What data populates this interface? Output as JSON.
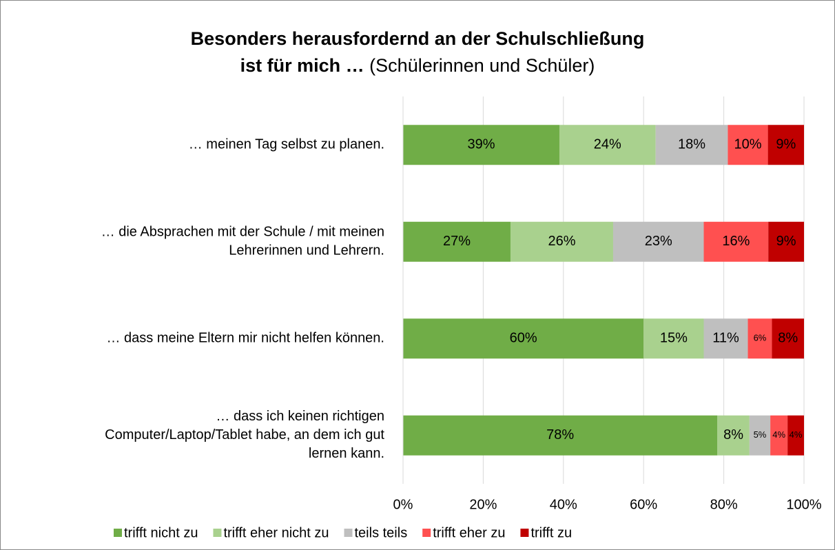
{
  "chart_data": {
    "type": "stacked-barh",
    "title": [
      "Besonders herausfordernd an der Schulschließung",
      "ist für mich …"
    ],
    "subtitle": "(Schülerinnen und Schüler)",
    "categories": [
      [
        "… meinen Tag selbst zu planen."
      ],
      [
        "… die Absprachen mit der Schule / mit meinen",
        "Lehrerinnen und Lehrern."
      ],
      [
        "… dass meine Eltern mir nicht helfen können."
      ],
      [
        "… dass ich keinen richtigen",
        "Computer/Laptop/Tablet habe, an dem ich gut",
        "lernen kann."
      ]
    ],
    "series": [
      {
        "name": "trifft nicht zu",
        "color": "#70ad47",
        "values": [
          39,
          26.8,
          60,
          78.4
        ],
        "value_labels": [
          "39%",
          "27%",
          "60%",
          "78%"
        ]
      },
      {
        "name": "trifft eher nicht zu",
        "color": "#a9d18e",
        "values": [
          24,
          25.6,
          15,
          8.0
        ],
        "value_labels": [
          "24%",
          "26%",
          "15%",
          "8%"
        ]
      },
      {
        "name": "teils teils",
        "color": "#bfbfbf",
        "values": [
          18,
          22.6,
          11,
          5.2
        ],
        "value_labels": [
          "18%",
          "23%",
          "11%",
          "5%"
        ]
      },
      {
        "name": "trifft eher zu",
        "color": "#ff5050",
        "values": [
          10,
          16.1,
          6,
          4.3
        ],
        "value_labels": [
          "10%",
          "16%",
          "6%",
          "4%"
        ]
      },
      {
        "name": "trifft zu",
        "color": "#c00000",
        "values": [
          9,
          8.9,
          8,
          4.1
        ],
        "value_labels": [
          "9%",
          "9%",
          "8%",
          "4%"
        ]
      }
    ],
    "xlim": [
      0,
      100
    ],
    "xticks": [
      {
        "value": 0,
        "label": "0%"
      },
      {
        "value": 20,
        "label": "20%"
      },
      {
        "value": 40,
        "label": "40%"
      },
      {
        "value": 60,
        "label": "60%"
      },
      {
        "value": 80,
        "label": "80%"
      },
      {
        "value": 100,
        "label": "100%"
      }
    ],
    "grid": true,
    "legend": "bottom"
  }
}
